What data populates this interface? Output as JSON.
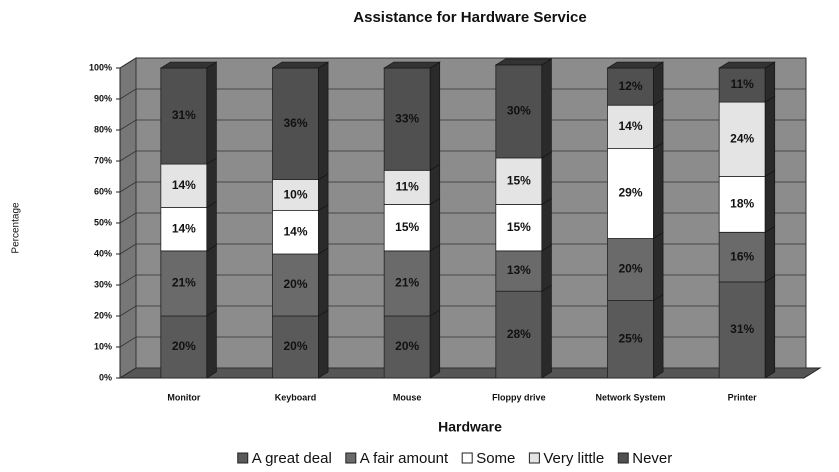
{
  "chart_data": {
    "type": "stacked_bar",
    "title": "Assistance for Hardware Service",
    "x_label": "Hardware",
    "y_label": "Percentage",
    "categories": [
      "Monitor",
      "Keyboard",
      "Mouse",
      "Floppy drive",
      "Network System",
      "Printer"
    ],
    "series": [
      {
        "name": "A great deal",
        "color": "#5a5a5a",
        "values": [
          20,
          20,
          20,
          28,
          25,
          31
        ],
        "value_labels": [
          "20%",
          "20%",
          "20%",
          "28%",
          "25%",
          "31%"
        ]
      },
      {
        "name": "A fair amount",
        "color": "#6a6a6a",
        "values": [
          21,
          20,
          21,
          13,
          20,
          16
        ],
        "value_labels": [
          "21%",
          "20%",
          "21%",
          "13%",
          "20%",
          "16%"
        ]
      },
      {
        "name": "Some",
        "color": "#ffffff",
        "values": [
          14,
          14,
          15,
          15,
          29,
          18
        ],
        "value_labels": [
          "14%",
          "14%",
          "15%",
          "15%",
          "29%",
          "18%"
        ]
      },
      {
        "name": "Very little",
        "color": "#e4e4e4",
        "values": [
          14,
          10,
          11,
          15,
          14,
          24
        ],
        "value_labels": [
          "14%",
          "10%",
          "11%",
          "15%",
          "14%",
          "24%"
        ]
      },
      {
        "name": "Never",
        "color": "#505050",
        "values": [
          31,
          36,
          33,
          30,
          12,
          11
        ],
        "value_labels": [
          "31%",
          "36%",
          "33%",
          "30%",
          "12%",
          "11%"
        ]
      }
    ],
    "ylim": [
      0,
      100
    ],
    "yticks": [
      {
        "value": 0,
        "label": "0%"
      },
      {
        "value": 10,
        "label": "10%"
      },
      {
        "value": 20,
        "label": "20%"
      },
      {
        "value": 30,
        "label": "30%"
      },
      {
        "value": 40,
        "label": "40%"
      },
      {
        "value": 50,
        "label": "50%"
      },
      {
        "value": 60,
        "label": "60%"
      },
      {
        "value": 70,
        "label": "70%"
      },
      {
        "value": 80,
        "label": "80%"
      },
      {
        "value": 90,
        "label": "90%"
      },
      {
        "value": 100,
        "label": "100%"
      }
    ],
    "grid": true
  }
}
